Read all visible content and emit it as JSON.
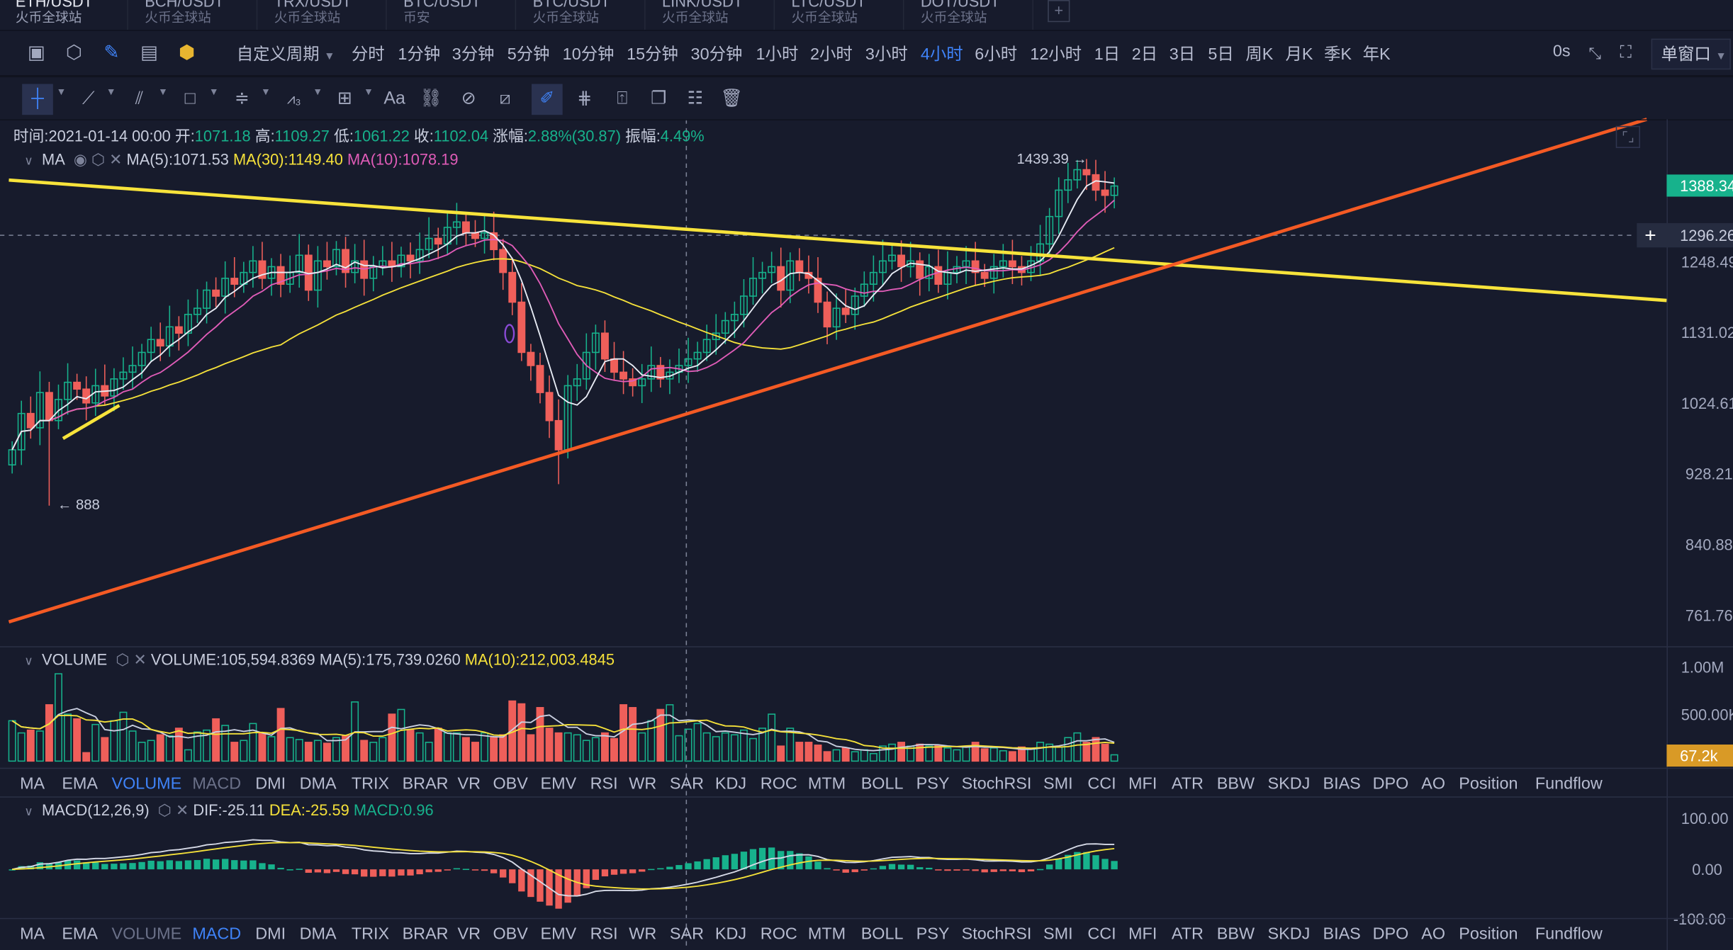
{
  "tabs": [
    {
      "symbol": "ETH/USDT",
      "exchange": "火币全球站",
      "active": true
    },
    {
      "symbol": "BCH/USDT",
      "exchange": "火币全球站"
    },
    {
      "symbol": "TRX/USDT",
      "exchange": "火币全球站"
    },
    {
      "symbol": "BTC/USDT",
      "exchange": "币安"
    },
    {
      "symbol": "BTC/USDT",
      "exchange": "火币全球站"
    },
    {
      "symbol": "LINK/USDT",
      "exchange": "火币全球站"
    },
    {
      "symbol": "LTC/USDT",
      "exchange": "火币全球站"
    },
    {
      "symbol": "DOT/USDT",
      "exchange": "火币全球站"
    }
  ],
  "tab_add": "+",
  "toolbar": {
    "custom_period": "自定义周期",
    "periods": [
      "分时",
      "1分钟",
      "3分钟",
      "5分钟",
      "10分钟",
      "15分钟",
      "30分钟",
      "1小时",
      "2小时",
      "3小时",
      "4小时",
      "6小时",
      "12小时",
      "1日",
      "2日",
      "3日",
      "5日",
      "周K",
      "月K",
      "季K",
      "年K"
    ],
    "active_period": "4小时",
    "countdown": "0s",
    "window_mode": "单窗口",
    "text_tool": "Aa"
  },
  "info": {
    "time_label": "时间:",
    "time": "2021-01-14 00:00",
    "open_label": "开:",
    "open": "1071.18",
    "high_label": "高:",
    "high": "1109.27",
    "low_label": "低:",
    "low": "1061.22",
    "close_label": "收:",
    "close": "1102.04",
    "change_label": "涨幅:",
    "change": "2.88%(30.87)",
    "amp_label": "振幅:",
    "amp": "4.49%"
  },
  "ma_legend": {
    "name": "MA",
    "ma5": "MA(5):1071.53",
    "ma30": "MA(30):1149.40",
    "ma10": "MA(10):1078.19"
  },
  "volume_legend": {
    "name": "VOLUME",
    "vol": "VOLUME:105,594.8369",
    "ma5": "MA(5):175,739.0260",
    "ma10": "MA(10):212,003.4845"
  },
  "macd_legend": {
    "name": "MACD(12,26,9)",
    "dif": "DIF:-25.11",
    "dea": "DEA:-25.59",
    "macd": "MACD:0.96"
  },
  "annotations": {
    "high": "1439.39 →",
    "low": "← 888"
  },
  "price_axis": [
    "1388.34",
    "1296.26",
    "1248.49",
    "1131.02",
    "1024.61",
    "928.21",
    "840.88",
    "761.76"
  ],
  "last_price": "1388.34",
  "crosshair_price": "1296.26",
  "volume_axis": [
    "1.00M",
    "500.00K"
  ],
  "last_volume": "67.2k",
  "macd_axis": [
    "100.00",
    "0.00",
    "-100.00"
  ],
  "indicators": [
    "MA",
    "EMA",
    "VOLUME",
    "MACD",
    "DMI",
    "DMA",
    "TRIX",
    "BRAR",
    "VR",
    "OBV",
    "EMV",
    "RSI",
    "WR",
    "SAR",
    "KDJ",
    "ROC",
    "MTM",
    "BOLL",
    "PSY",
    "StochRSI",
    "SMI",
    "CCI",
    "MFI",
    "ATR",
    "BBW",
    "SKDJ",
    "BIAS",
    "DPO",
    "AO",
    "Position",
    "Fundflow"
  ],
  "colors": {
    "up": "#17b28c",
    "down": "#ef5f5a",
    "ma5": "#e8ecf5",
    "ma10": "#e05cb8",
    "ma30": "#f5e13a",
    "accent": "#3f83f8",
    "trend_yellow": "#f7e33b",
    "trend_orange": "#f45a24"
  },
  "series": {
    "first_open": 940,
    "close": [
      960,
      1010,
      990,
      1040,
      1000,
      1030,
      1055,
      1045,
      1025,
      1050,
      1035,
      1060,
      1070,
      1080,
      1100,
      1120,
      1110,
      1140,
      1130,
      1160,
      1170,
      1200,
      1190,
      1220,
      1210,
      1230,
      1250,
      1220,
      1240,
      1210,
      1230,
      1260,
      1200,
      1250,
      1240,
      1270,
      1230,
      1250,
      1220,
      1240,
      1250,
      1240,
      1260,
      1250,
      1270,
      1290,
      1280,
      1310,
      1320,
      1300,
      1290,
      1300,
      1270,
      1230,
      1180,
      1100,
      1080,
      1040,
      1000,
      960,
      1050,
      1060,
      1100,
      1130,
      1090,
      1070,
      1060,
      1050,
      1060,
      1080,
      1060,
      1070,
      1080,
      1090,
      1100,
      1120,
      1130,
      1150,
      1160,
      1190,
      1220,
      1230,
      1240,
      1200,
      1250,
      1230,
      1220,
      1180,
      1140,
      1170,
      1160,
      1190,
      1210,
      1230,
      1250,
      1260,
      1240,
      1250,
      1220,
      1240,
      1210,
      1230,
      1240,
      1250,
      1230,
      1220,
      1240,
      1250,
      1240,
      1230,
      1250,
      1280,
      1330,
      1380,
      1400,
      1420,
      1410,
      1380,
      1370,
      1388
    ],
    "volume_k": [
      430,
      300,
      330,
      320,
      600,
      930,
      500,
      450,
      90,
      390,
      250,
      430,
      520,
      320,
      200,
      220,
      280,
      270,
      350,
      120,
      310,
      330,
      450,
      380,
      200,
      220,
      400,
      300,
      260,
      560,
      250,
      230,
      200,
      220,
      190,
      250,
      270,
      630,
      220,
      200,
      250,
      500,
      550,
      330,
      300,
      200,
      350,
      300,
      300,
      250,
      200,
      300,
      250,
      280,
      640,
      610,
      280,
      570,
      350,
      300,
      300,
      280,
      220,
      250,
      300,
      240,
      600,
      570,
      300,
      430,
      550,
      600,
      270,
      340,
      400,
      300,
      260,
      300,
      280,
      330,
      240,
      350,
      500,
      160,
      350,
      200,
      200,
      170,
      100,
      120,
      140,
      100,
      120,
      80,
      160,
      180,
      200,
      160,
      180,
      160,
      170,
      140,
      120,
      150,
      200,
      130,
      140,
      110,
      100,
      150,
      130,
      200,
      180,
      150,
      250,
      300,
      200,
      250,
      180,
      67
    ]
  }
}
